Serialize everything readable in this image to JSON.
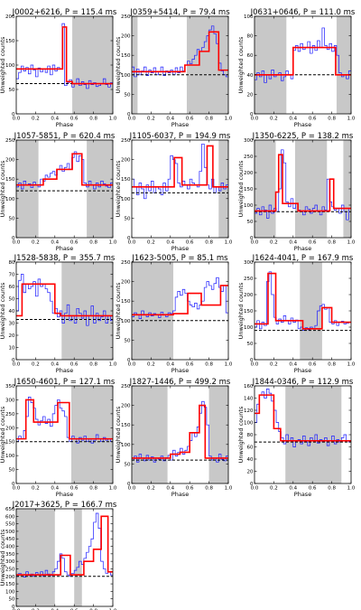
{
  "figure": {
    "xlabel": "Phase",
    "ylabel": "Unweighted counts",
    "x_ticks": [
      "0.0",
      "0.2",
      "0.4",
      "0.6",
      "0.8",
      "1.0"
    ],
    "colors": {
      "histogram": "#1a1aff",
      "model": "#ff0000",
      "shade": "#c8c8c8",
      "baseline": "#000000"
    }
  },
  "chart_data": [
    {
      "type": "line",
      "title": "J0002+6216, P = 115.4 ms",
      "xlabel": "Phase",
      "ylabel": "Unweighted counts",
      "xlim": [
        0,
        1
      ],
      "ylim": [
        0,
        200
      ],
      "yticks": [
        0,
        50,
        100,
        150,
        200
      ],
      "baseline": 62,
      "off_pulse": [
        [
          0.58,
          1.0
        ]
      ],
      "model": {
        "x": [
          0,
          0.48,
          0.48,
          0.52,
          0.52,
          0.58,
          0.58,
          1.0
        ],
        "y": [
          92,
          92,
          178,
          178,
          66,
          66,
          62,
          62
        ]
      },
      "histogram": [
        72,
        85,
        98,
        88,
        95,
        82,
        100,
        90,
        76,
        94,
        86,
        92,
        85,
        98,
        80,
        100,
        88,
        95,
        92,
        185,
        58,
        64,
        70,
        55,
        62,
        72,
        58,
        66,
        60,
        52,
        68,
        60,
        64,
        56,
        58,
        62,
        72,
        60,
        55,
        64
      ]
    },
    {
      "type": "line",
      "title": "J0359+5414, P = 79.4 ms",
      "xlabel": "Phase",
      "ylabel": "Unweighted counts",
      "xlim": [
        0,
        1
      ],
      "ylim": [
        0,
        250
      ],
      "yticks": [
        0,
        50,
        100,
        150,
        200,
        250
      ],
      "baseline": 100,
      "off_pulse": [
        [
          0.0,
          0.06
        ],
        [
          0.57,
          1.0
        ]
      ],
      "model": {
        "x": [
          0,
          0.55,
          0.55,
          0.7,
          0.7,
          0.8,
          0.8,
          0.9,
          0.9,
          1.0
        ],
        "y": [
          108,
          108,
          125,
          125,
          160,
          160,
          210,
          210,
          112,
          112
        ]
      },
      "histogram": [
        120,
        95,
        115,
        100,
        110,
        120,
        98,
        112,
        105,
        118,
        100,
        108,
        120,
        98,
        110,
        105,
        112,
        100,
        118,
        105,
        120,
        110,
        125,
        135,
        128,
        140,
        150,
        165,
        160,
        170,
        185,
        200,
        215,
        225,
        205,
        180,
        130,
        110,
        100,
        95
      ]
    },
    {
      "type": "line",
      "title": "J0631+0646, P = 111.0 ms",
      "xlabel": "Phase",
      "ylabel": "Unweighted counts",
      "xlim": [
        0,
        1
      ],
      "ylim": [
        0,
        100
      ],
      "yticks": [
        0,
        20,
        40,
        60,
        80,
        100
      ],
      "baseline": 40,
      "off_pulse": [
        [
          0.0,
          0.33
        ],
        [
          0.85,
          1.0
        ]
      ],
      "model": {
        "x": [
          0,
          0.4,
          0.4,
          0.84,
          0.84,
          1.0
        ],
        "y": [
          40,
          40,
          68,
          68,
          40,
          40
        ]
      },
      "histogram": [
        35,
        42,
        38,
        44,
        32,
        40,
        36,
        45,
        38,
        40,
        42,
        34,
        38,
        44,
        40,
        36,
        65,
        70,
        64,
        72,
        66,
        68,
        74,
        62,
        70,
        65,
        75,
        68,
        88,
        70,
        66,
        72,
        64,
        70,
        60,
        42,
        38,
        40,
        36,
        44
      ]
    },
    {
      "type": "line",
      "title": "J1057-5851, P = 620.4 ms",
      "xlabel": "Phase",
      "ylabel": "Unweighted counts",
      "xlim": [
        0,
        1
      ],
      "ylim": [
        0,
        250
      ],
      "yticks": [
        0,
        50,
        100,
        150,
        200,
        250
      ],
      "baseline": 120,
      "off_pulse": [
        [
          0.0,
          0.23
        ],
        [
          0.73,
          1.0
        ]
      ],
      "model": {
        "x": [
          0,
          0.28,
          0.28,
          0.42,
          0.42,
          0.58,
          0.58,
          0.68,
          0.68,
          1.0
        ],
        "y": [
          135,
          135,
          150,
          150,
          175,
          175,
          215,
          215,
          135,
          135
        ]
      },
      "histogram": [
        130,
        140,
        125,
        145,
        135,
        138,
        128,
        142,
        135,
        130,
        150,
        145,
        160,
        155,
        165,
        170,
        160,
        175,
        185,
        170,
        180,
        190,
        175,
        205,
        220,
        195,
        210,
        200,
        140,
        130,
        145,
        135,
        125,
        140,
        130,
        145,
        138,
        132,
        128,
        140
      ]
    },
    {
      "type": "line",
      "title": "J1105-6037, P = 194.9 ms",
      "xlabel": "Phase",
      "ylabel": "Unweighted counts",
      "xlim": [
        0,
        1
      ],
      "ylim": [
        0,
        250
      ],
      "yticks": [
        0,
        50,
        100,
        150,
        200,
        250
      ],
      "baseline": 115,
      "off_pulse": [
        [
          0.9,
          1.0
        ]
      ],
      "model": {
        "x": [
          0,
          0.44,
          0.44,
          0.52,
          0.52,
          0.78,
          0.78,
          0.84,
          0.84,
          1.0
        ],
        "y": [
          130,
          130,
          205,
          205,
          135,
          135,
          235,
          235,
          130,
          130
        ]
      },
      "histogram": [
        150,
        130,
        110,
        140,
        125,
        100,
        135,
        120,
        145,
        115,
        130,
        125,
        110,
        140,
        120,
        150,
        210,
        200,
        190,
        140,
        130,
        145,
        135,
        125,
        150,
        140,
        135,
        130,
        170,
        240,
        180,
        135,
        125,
        150,
        115,
        130,
        120,
        140,
        125,
        135
      ]
    },
    {
      "type": "line",
      "title": "J1350-6225, P = 138.2 ms",
      "xlabel": "Phase",
      "ylabel": "Unweighted counts",
      "xlim": [
        0,
        1
      ],
      "ylim": [
        0,
        300
      ],
      "yticks": [
        0,
        50,
        100,
        150,
        200,
        250,
        300
      ],
      "baseline": 80,
      "off_pulse": [
        [
          0.0,
          0.22
        ],
        [
          0.42,
          0.75
        ],
        [
          0.92,
          1.0
        ]
      ],
      "model": {
        "x": [
          0,
          0.22,
          0.22,
          0.25,
          0.25,
          0.29,
          0.29,
          0.45,
          0.45,
          0.78,
          0.78,
          0.82,
          0.82,
          1.0
        ],
        "y": [
          82,
          82,
          140,
          140,
          255,
          255,
          105,
          105,
          82,
          82,
          180,
          180,
          90,
          90
        ]
      },
      "histogram": [
        75,
        90,
        70,
        95,
        85,
        60,
        100,
        75,
        90,
        80,
        150,
        270,
        230,
        110,
        95,
        120,
        90,
        105,
        85,
        80,
        70,
        95,
        88,
        75,
        90,
        100,
        82,
        70,
        95,
        85,
        180,
        110,
        95,
        85,
        90,
        75,
        100,
        80,
        55,
        90
      ]
    },
    {
      "type": "line",
      "title": "J1528-5838, P = 355.7 ms",
      "xlabel": "Phase",
      "ylabel": "Unweighted counts",
      "xlim": [
        0,
        1
      ],
      "ylim": [
        0,
        80
      ],
      "yticks": [
        0,
        10,
        20,
        30,
        40,
        50,
        60,
        70,
        80
      ],
      "baseline": 33,
      "off_pulse": [
        [
          0.47,
          1.0
        ]
      ],
      "model": {
        "x": [
          0,
          0.06,
          0.06,
          0.4,
          0.4,
          0.46,
          0.46,
          1.0
        ],
        "y": [
          36,
          36,
          62,
          62,
          38,
          38,
          36,
          36
        ]
      },
      "histogram": [
        40,
        65,
        70,
        55,
        62,
        58,
        60,
        64,
        52,
        66,
        60,
        62,
        58,
        55,
        48,
        38,
        42,
        35,
        40,
        30,
        38,
        45,
        32,
        36,
        30,
        42,
        38,
        34,
        40,
        28,
        36,
        44,
        30,
        38,
        32,
        35,
        40,
        30,
        36,
        32
      ]
    },
    {
      "type": "line",
      "title": "J1623-5005, P = 85.1 ms",
      "xlabel": "Phase",
      "ylabel": "Unweighted counts",
      "xlim": [
        0,
        1
      ],
      "ylim": [
        0,
        250
      ],
      "yticks": [
        0,
        50,
        100,
        150,
        200,
        250
      ],
      "baseline": 100,
      "off_pulse": [
        [
          0.0,
          0.43
        ]
      ],
      "model": {
        "x": [
          0,
          0.43,
          0.43,
          0.58,
          0.58,
          0.72,
          0.72,
          0.92,
          0.92,
          1.0
        ],
        "y": [
          115,
          115,
          118,
          118,
          170,
          170,
          140,
          140,
          190,
          190
        ]
      },
      "histogram": [
        110,
        120,
        115,
        105,
        125,
        115,
        110,
        120,
        112,
        118,
        115,
        108,
        122,
        115,
        110,
        120,
        118,
        125,
        160,
        175,
        165,
        180,
        170,
        150,
        140,
        135,
        145,
        130,
        140,
        150,
        185,
        200,
        190,
        180,
        195,
        210,
        185,
        175,
        190,
        120
      ]
    },
    {
      "type": "line",
      "title": "J1624-4041, P = 167.9 ms",
      "xlabel": "Phase",
      "ylabel": "Unweighted counts",
      "xlim": [
        0,
        1
      ],
      "ylim": [
        0,
        300
      ],
      "yticks": [
        0,
        50,
        100,
        150,
        200,
        250,
        300
      ],
      "baseline": 90,
      "off_pulse": [
        [
          0.47,
          0.7
        ]
      ],
      "model": {
        "x": [
          0,
          0.14,
          0.14,
          0.22,
          0.22,
          0.5,
          0.5,
          0.7,
          0.7,
          0.8,
          0.8,
          1.0
        ],
        "y": [
          110,
          110,
          265,
          265,
          120,
          120,
          95,
          95,
          160,
          160,
          115,
          115
        ]
      },
      "histogram": [
        100,
        120,
        95,
        115,
        105,
        240,
        270,
        200,
        130,
        110,
        125,
        115,
        135,
        120,
        110,
        128,
        115,
        122,
        95,
        100,
        90,
        98,
        92,
        100,
        95,
        105,
        150,
        165,
        170,
        155,
        160,
        115,
        110,
        120,
        105,
        115,
        118,
        110,
        112,
        115
      ]
    },
    {
      "type": "line",
      "title": "J1650-4601, P = 127.1 ms",
      "xlabel": "Phase",
      "ylabel": "Unweighted counts",
      "xlim": [
        0,
        1
      ],
      "ylim": [
        0,
        350
      ],
      "yticks": [
        0,
        50,
        100,
        150,
        200,
        250,
        300,
        350
      ],
      "baseline": 150,
      "off_pulse": [
        [
          0.57,
          1.0
        ]
      ],
      "model": {
        "x": [
          0,
          0.1,
          0.1,
          0.18,
          0.18,
          0.43,
          0.43,
          0.55,
          0.55,
          1.0
        ],
        "y": [
          160,
          160,
          300,
          300,
          220,
          220,
          290,
          290,
          160,
          160
        ]
      },
      "histogram": [
        150,
        170,
        160,
        190,
        240,
        310,
        290,
        270,
        230,
        210,
        225,
        240,
        215,
        230,
        205,
        250,
        280,
        300,
        270,
        260,
        240,
        165,
        150,
        170,
        160,
        145,
        165,
        155,
        170,
        150,
        160,
        145,
        155,
        175,
        160,
        150,
        165,
        155,
        160,
        150
      ]
    },
    {
      "type": "line",
      "title": "J1827-1446, P = 499.2 ms",
      "xlabel": "Phase",
      "ylabel": "Unweighted counts",
      "xlim": [
        0,
        1
      ],
      "ylim": [
        0,
        250
      ],
      "yticks": [
        0,
        50,
        100,
        150,
        200,
        250
      ],
      "baseline": 60,
      "off_pulse": [
        [
          0.0,
          0.37
        ],
        [
          0.8,
          1.0
        ]
      ],
      "model": {
        "x": [
          0,
          0.4,
          0.4,
          0.5,
          0.5,
          0.6,
          0.6,
          0.7,
          0.7,
          0.76,
          0.76,
          1.0
        ],
        "y": [
          65,
          65,
          75,
          75,
          80,
          80,
          130,
          130,
          200,
          200,
          65,
          65
        ]
      },
      "histogram": [
        60,
        70,
        55,
        75,
        65,
        58,
        72,
        60,
        68,
        55,
        65,
        62,
        70,
        58,
        66,
        72,
        60,
        85,
        70,
        80,
        90,
        75,
        85,
        95,
        110,
        130,
        120,
        145,
        180,
        210,
        195,
        150,
        70,
        60,
        65,
        55,
        75,
        62,
        58,
        70
      ]
    },
    {
      "type": "line",
      "title": "J1844-0346, P = 112.9 ms",
      "xlabel": "Phase",
      "ylabel": "Unweighted counts",
      "xlim": [
        0,
        1
      ],
      "ylim": [
        0,
        160
      ],
      "yticks": [
        0,
        20,
        40,
        60,
        80,
        100,
        120,
        140,
        160
      ],
      "baseline": 68,
      "off_pulse": [
        [
          0.32,
          0.9
        ]
      ],
      "model": {
        "x": [
          0,
          0.05,
          0.05,
          0.2,
          0.2,
          0.27,
          0.27,
          1.0
        ],
        "y": [
          115,
          115,
          145,
          145,
          90,
          90,
          70,
          70
        ]
      },
      "histogram": [
        100,
        130,
        145,
        150,
        140,
        155,
        148,
        135,
        120,
        100,
        85,
        75,
        65,
        80,
        70,
        75,
        60,
        70,
        72,
        65,
        78,
        68,
        62,
        75,
        70,
        80,
        66,
        72,
        68,
        75,
        62,
        70,
        78,
        65,
        72,
        68,
        75,
        80,
        70,
        68
      ]
    },
    {
      "type": "line",
      "title": "J2017+3625, P = 166.7 ms",
      "xlabel": "Phase",
      "ylabel": "Unweighted counts",
      "xlim": [
        0,
        1
      ],
      "ylim": [
        0,
        650
      ],
      "yticks": [
        0,
        50,
        100,
        150,
        200,
        250,
        300,
        350,
        400,
        450,
        500,
        550,
        600,
        650
      ],
      "baseline": 200,
      "off_pulse": [
        [
          0.0,
          0.4
        ],
        [
          0.6,
          0.68
        ]
      ],
      "model": {
        "x": [
          0,
          0.46,
          0.46,
          0.56,
          0.56,
          0.7,
          0.7,
          0.8,
          0.8,
          0.88,
          0.88,
          0.95,
          0.95,
          1.0
        ],
        "y": [
          210,
          210,
          340,
          340,
          210,
          210,
          300,
          300,
          380,
          380,
          600,
          600,
          230,
          230
        ]
      },
      "histogram": [
        200,
        220,
        210,
        195,
        230,
        205,
        215,
        200,
        225,
        210,
        230,
        200,
        240,
        215,
        205,
        230,
        250,
        300,
        350,
        320,
        230,
        210,
        200,
        220,
        240,
        260,
        300,
        280,
        320,
        360,
        400,
        450,
        560,
        620,
        520,
        300,
        250,
        220,
        230,
        210
      ]
    }
  ]
}
